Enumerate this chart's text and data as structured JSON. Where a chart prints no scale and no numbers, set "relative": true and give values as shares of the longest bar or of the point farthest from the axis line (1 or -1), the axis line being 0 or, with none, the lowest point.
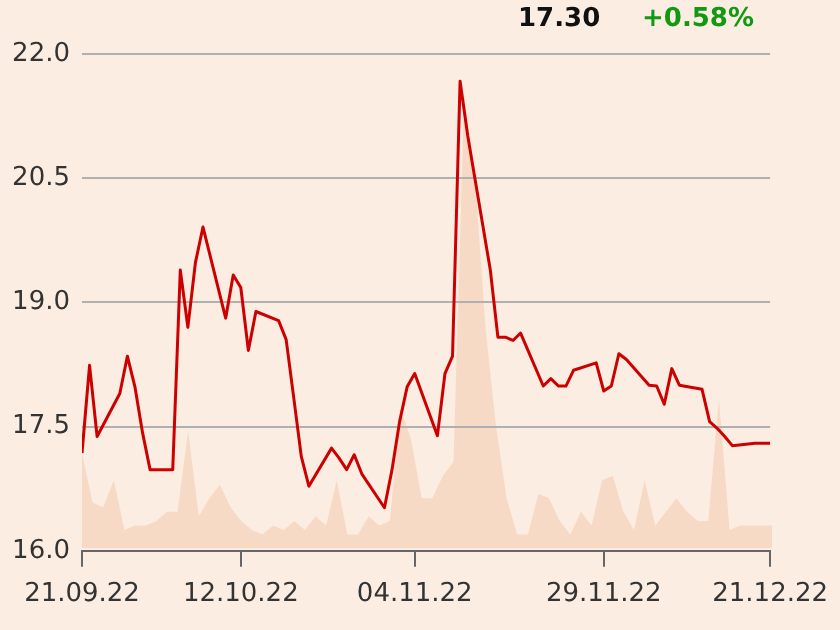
{
  "chart_data": [
    {
      "type": "line",
      "annotations": [
        "17.30",
        "+0.58%"
      ],
      "x": [
        "2022-09-21",
        "2022-09-22",
        "2022-09-23",
        "2022-09-26",
        "2022-09-27",
        "2022-09-28",
        "2022-09-29",
        "2022-09-30",
        "2022-10-03",
        "2022-10-04",
        "2022-10-05",
        "2022-10-06",
        "2022-10-07",
        "2022-10-10",
        "2022-10-11",
        "2022-10-12",
        "2022-10-13",
        "2022-10-14",
        "2022-10-17",
        "2022-10-18",
        "2022-10-19",
        "2022-10-20",
        "2022-10-21",
        "2022-10-24",
        "2022-10-25",
        "2022-10-26",
        "2022-10-27",
        "2022-10-28",
        "2022-10-31",
        "2022-11-01",
        "2022-11-02",
        "2022-11-03",
        "2022-11-04",
        "2022-11-07",
        "2022-11-08",
        "2022-11-09",
        "2022-11-10",
        "2022-11-11",
        "2022-11-14",
        "2022-11-15",
        "2022-11-16",
        "2022-11-17",
        "2022-11-18",
        "2022-11-21",
        "2022-11-22",
        "2022-11-23",
        "2022-11-24",
        "2022-11-25",
        "2022-11-28",
        "2022-11-29",
        "2022-11-30",
        "2022-12-01",
        "2022-12-02",
        "2022-12-05",
        "2022-12-06",
        "2022-12-07",
        "2022-12-08",
        "2022-12-09",
        "2022-12-12",
        "2022-12-13",
        "2022-12-14",
        "2022-12-15",
        "2022-12-16",
        "2022-12-19",
        "2022-12-20",
        "2022-12-21"
      ],
      "series": [
        {
          "color": "#cc0000",
          "values": [
            17.18,
            18.24,
            17.38,
            17.9,
            18.35,
            17.98,
            17.43,
            16.98,
            16.98,
            19.39,
            18.7,
            19.48,
            19.91,
            18.81,
            19.33,
            19.18,
            18.42,
            18.89,
            18.78,
            18.55,
            17.85,
            17.14,
            16.78,
            17.24,
            17.12,
            16.98,
            17.16,
            16.93,
            16.52,
            16.98,
            17.56,
            17.98,
            18.14,
            17.39,
            18.14,
            18.35,
            21.67,
            21.02,
            19.39,
            18.58,
            18.58,
            18.54,
            18.63,
            17.99,
            18.08,
            17.99,
            17.99,
            18.18,
            18.27,
            17.93,
            17.99,
            18.38,
            18.31,
            18.0,
            17.99,
            17.77,
            18.2,
            18.0,
            17.95,
            17.56,
            17.48,
            17.38,
            17.27,
            17.3,
            17.3,
            17.3
          ]
        }
      ],
      "xlim": [
        "2022-09-21",
        "2022-12-21"
      ],
      "xticks": [
        {
          "value": "2022-09-21",
          "label": "21.09.22"
        },
        {
          "value": "2022-10-12",
          "label": "12.10.22"
        },
        {
          "value": "2022-11-04",
          "label": "04.11.22"
        },
        {
          "value": "2022-11-29",
          "label": "29.11.22"
        },
        {
          "value": "2022-12-21",
          "label": "21.12.22"
        }
      ],
      "ylim": [
        16,
        22
      ],
      "yticks": [
        {
          "value": 16,
          "label": "16.0"
        },
        {
          "value": 17.5,
          "label": "17.5"
        },
        {
          "value": 19,
          "label": "19.0"
        },
        {
          "value": 20.5,
          "label": "20.5"
        },
        {
          "value": 22,
          "label": "22.0"
        }
      ],
      "grid": "y",
      "legend": false,
      "marker": "none",
      "line_style": "solid"
    },
    {
      "type": "area",
      "relative": true,
      "color": "#f7dac6",
      "categories": [
        null,
        null,
        null,
        null,
        null,
        null,
        null,
        null,
        null,
        null,
        null,
        null,
        null,
        null,
        null,
        null,
        null,
        null,
        null,
        null,
        null,
        null,
        null,
        null,
        null,
        null,
        null,
        null,
        null,
        null,
        null,
        null,
        null,
        null,
        null,
        null,
        null,
        null,
        null,
        null,
        null,
        null,
        null,
        null,
        null,
        null,
        null,
        null,
        null,
        null,
        null,
        null,
        null,
        null,
        null,
        null,
        null,
        null,
        null,
        null,
        null,
        null,
        null,
        null,
        null,
        null
      ],
      "values": [
        0.21,
        0.1,
        0.09,
        0.15,
        0.04,
        0.05,
        0.05,
        0.06,
        0.08,
        0.08,
        0.26,
        0.07,
        0.11,
        0.14,
        0.09,
        0.06,
        0.04,
        0.03,
        0.05,
        0.04,
        0.06,
        0.04,
        0.07,
        0.05,
        0.15,
        0.03,
        0.03,
        0.07,
        0.05,
        0.06,
        0.31,
        0.24,
        0.11,
        0.11,
        0.16,
        0.19,
        1,
        0.83,
        0.49,
        0.27,
        0.11,
        0.03,
        0.03,
        0.12,
        0.11,
        0.06,
        0.03,
        0.08,
        0.05,
        0.15,
        0.16,
        0.08,
        0.04,
        0.15,
        0.05,
        0.08,
        0.11,
        0.08,
        0.06,
        0.06,
        0.33,
        0.04,
        0.05,
        0.05,
        0.05,
        0.05
      ]
    }
  ]
}
